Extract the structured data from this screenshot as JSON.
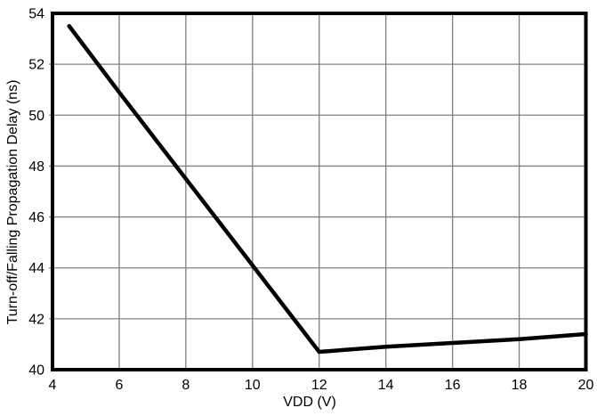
{
  "figure": {
    "background": "#ffffff"
  },
  "chart_data": {
    "type": "line",
    "title": "",
    "xlabel": "VDD (V)",
    "ylabel": "Turn-off/Falling Propagation Delay (ns)",
    "xlim": [
      4,
      20
    ],
    "ylim": [
      40,
      54
    ],
    "x_ticks": [
      4,
      6,
      8,
      10,
      12,
      14,
      16,
      18,
      20
    ],
    "y_ticks": [
      40,
      42,
      44,
      46,
      48,
      50,
      52,
      54
    ],
    "grid": true,
    "legend": false,
    "series": [
      {
        "name": "turn-off-falling-propagation-delay",
        "x": [
          4.5,
          6,
          8,
          10,
          12,
          14,
          16,
          18,
          20
        ],
        "y": [
          53.5,
          50.9,
          47.5,
          44.1,
          40.7,
          40.9,
          41.05,
          41.2,
          41.4
        ],
        "color": "#000000",
        "line_width": 4.5
      }
    ],
    "colors": {
      "grid": "#808080",
      "frame": "#000000",
      "text": "#000000",
      "background": "#ffffff"
    }
  }
}
